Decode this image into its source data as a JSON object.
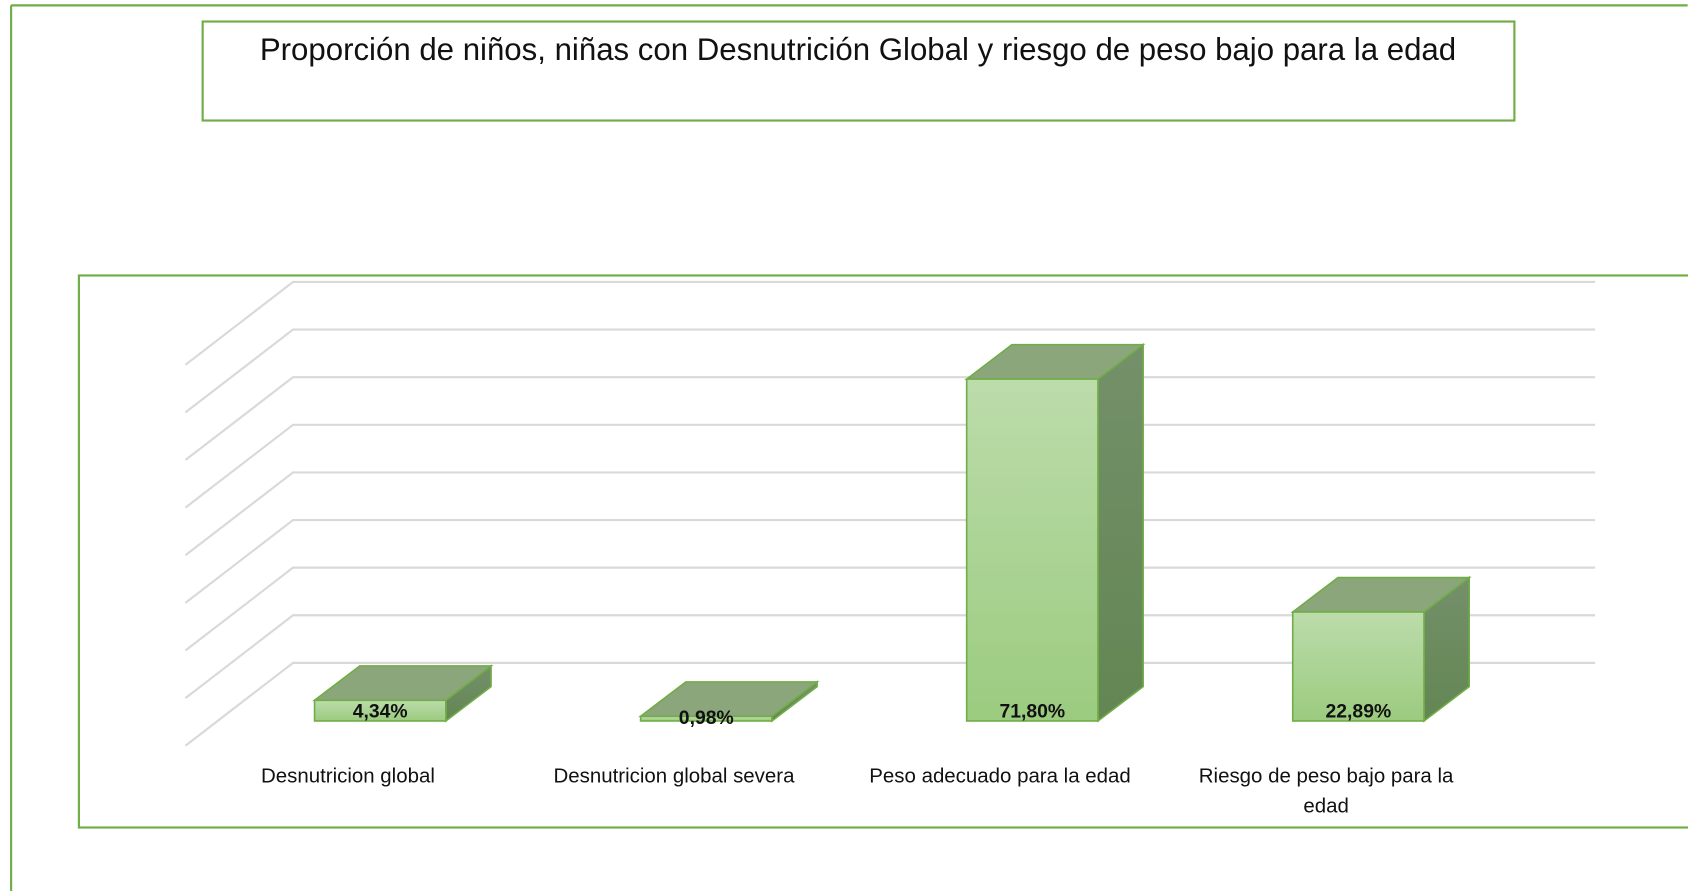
{
  "chart_data": {
    "type": "bar3d",
    "title": "Proporción de niños, niñas con Desnutrición Global y riesgo de peso bajo para la edad",
    "categories": [
      "Desnutricion global",
      "Desnutricion global severa",
      "Peso adecuado para la edad",
      "Riesgo de peso bajo para la edad"
    ],
    "values": [
      4.34,
      0.98,
      71.8,
      22.89
    ],
    "value_labels": [
      "4,34%",
      "0,98%",
      "71,80%",
      "22,89%"
    ],
    "color": "#a6d18c",
    "ylim": [
      0,
      80
    ],
    "yticks": [
      0,
      10,
      20,
      30,
      40,
      50,
      60,
      70,
      80
    ],
    "grid": true
  }
}
